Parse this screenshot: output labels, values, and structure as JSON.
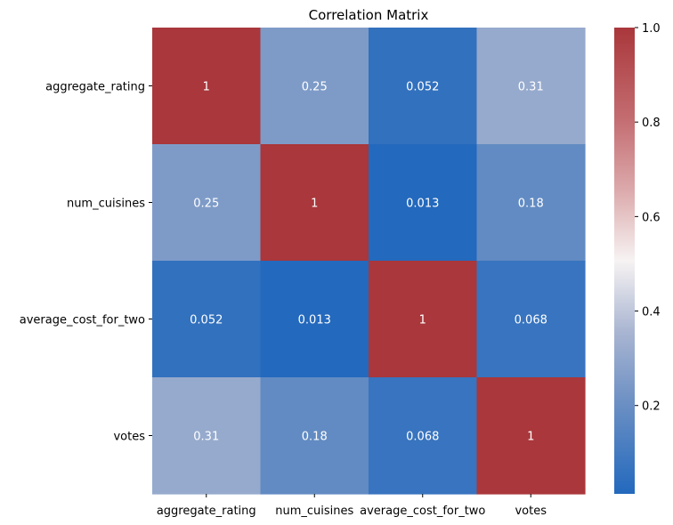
{
  "chart_data": {
    "type": "heatmap",
    "title": "Correlation Matrix",
    "xlabel": "",
    "ylabel": "",
    "x_categories": [
      "aggregate_rating",
      "num_cuisines",
      "average_cost_for_two",
      "votes"
    ],
    "y_categories": [
      "aggregate_rating",
      "num_cuisines",
      "average_cost_for_two",
      "votes"
    ],
    "values": [
      [
        1,
        0.25,
        0.052,
        0.31
      ],
      [
        0.25,
        1,
        0.013,
        0.18
      ],
      [
        0.052,
        0.013,
        1,
        0.068
      ],
      [
        0.31,
        0.18,
        0.068,
        1
      ]
    ],
    "annotations": [
      [
        "1",
        "0.25",
        "0.052",
        "0.31"
      ],
      [
        "0.25",
        "1",
        "0.013",
        "0.18"
      ],
      [
        "0.052",
        "0.013",
        "1",
        "0.068"
      ],
      [
        "0.31",
        "0.18",
        "0.068",
        "1"
      ]
    ],
    "colorscale": "vlag",
    "vmin": 0.013,
    "vmax": 1.0,
    "colorbar": {
      "ticks": [
        0.2,
        0.4,
        0.6,
        0.8,
        1.0
      ],
      "tick_labels": [
        "0.2",
        "0.4",
        "0.6",
        "0.8",
        "1.0"
      ]
    },
    "colors": {
      "low": "#2369bd",
      "mid": "#f7f3f3",
      "high": "#a9373b",
      "annotation_text": "#ffffff"
    }
  }
}
